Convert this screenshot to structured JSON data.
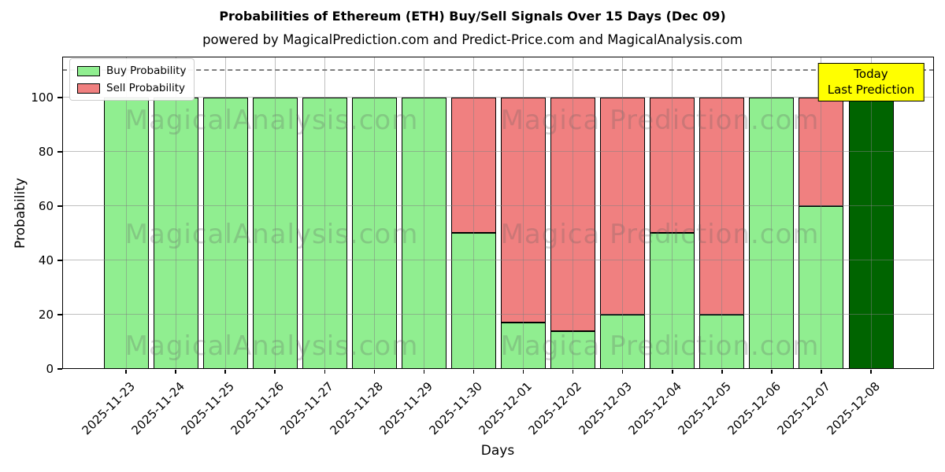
{
  "header": {
    "title": "Probabilities of Ethereum (ETH) Buy/Sell Signals Over 15 Days (Dec 09)",
    "subtitle": "powered by MagicalPrediction.com and Predict-Price.com and MagicalAnalysis.com"
  },
  "axes": {
    "xlabel": "Days",
    "ylabel": "Probability"
  },
  "legend": {
    "items": [
      {
        "label": "Buy Probability",
        "color": "#90ee90"
      },
      {
        "label": "Sell Probability",
        "color": "#f08080"
      }
    ]
  },
  "annotation": {
    "line1": "Today",
    "line2": "Last Prediction",
    "bg_color": "#ffff00"
  },
  "watermarks": {
    "left_text": "MagicalAnalysis.com",
    "right_text": "Magica Prediction.com"
  },
  "chart_data": {
    "type": "bar",
    "stacked": true,
    "title": "Probabilities of Ethereum (ETH) Buy/Sell Signals Over 15 Days (Dec 09)",
    "xlabel": "Days",
    "ylabel": "Probability",
    "categories": [
      "2025-11-23",
      "2025-11-24",
      "2025-11-25",
      "2025-11-26",
      "2025-11-27",
      "2025-11-28",
      "2025-11-29",
      "2025-11-30",
      "2025-12-01",
      "2025-12-02",
      "2025-12-03",
      "2025-12-04",
      "2025-12-05",
      "2025-12-06",
      "2025-12-07",
      "2025-12-08"
    ],
    "series": [
      {
        "name": "Buy Probability",
        "color": "#90ee90",
        "values": [
          100,
          100,
          100,
          100,
          100,
          100,
          100,
          50,
          17,
          14,
          20,
          50,
          20,
          100,
          60,
          100
        ]
      },
      {
        "name": "Sell Probability",
        "color": "#f08080",
        "values": [
          0,
          0,
          0,
          0,
          0,
          0,
          0,
          50,
          83,
          86,
          80,
          50,
          80,
          0,
          40,
          0
        ]
      }
    ],
    "today_bar": {
      "category": "2025-12-08",
      "index": 15,
      "color": "#006400"
    },
    "yticks": [
      0,
      20,
      40,
      60,
      80,
      100
    ],
    "ylim": [
      0,
      115
    ],
    "dashed_line_y": 110,
    "grid": true,
    "legend_position": "upper left",
    "bar_edge_color": "#000000"
  }
}
